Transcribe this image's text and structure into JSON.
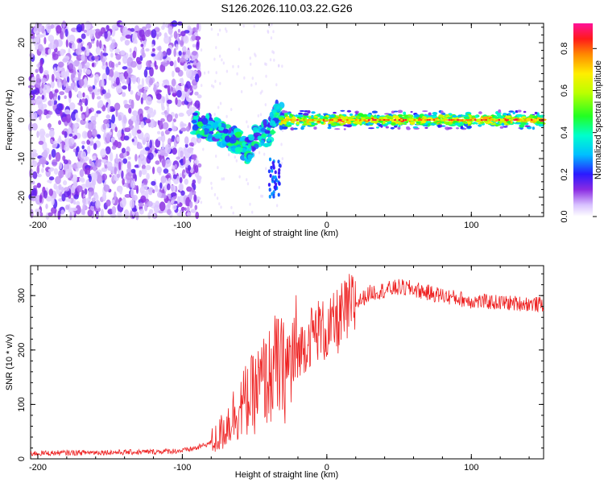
{
  "title": "S126.2026.110.03.22.G26",
  "colors": {
    "snr_line": "#ee2222",
    "background": "#ffffff",
    "speckle": "#7711ee"
  },
  "colorbar": {
    "label": "Normalized spectral amplitude",
    "ticks": [
      "0.0",
      "0.2",
      "0.4",
      "0.6",
      "0.8"
    ],
    "tick_values": [
      0.0,
      0.2,
      0.4,
      0.6,
      0.8
    ],
    "range": [
      0,
      0.92
    ]
  },
  "chart_data": [
    {
      "type": "heatmap",
      "title": "S126.2026.110.03.22.G26",
      "xlabel": "Height of straight line (km)",
      "ylabel": "Frequency (Hz)",
      "xlim": [
        -205,
        150
      ],
      "ylim": [
        -25,
        25
      ],
      "x_ticks": [
        -200,
        -100,
        0,
        100
      ],
      "x_tick_labels": [
        "-200",
        "-100",
        "0",
        "100"
      ],
      "y_ticks": [
        -20,
        -10,
        0,
        10,
        20
      ],
      "y_tick_labels": [
        "-20",
        "-10",
        "0",
        "10",
        "20"
      ],
      "description_regions": [
        {
          "x_range": [
            -205,
            -90
          ],
          "freq_range": [
            -25,
            25
          ],
          "amplitude": "low (noise speckle)"
        },
        {
          "x_range": [
            -90,
            -40
          ],
          "freq_range": [
            -12,
            2
          ],
          "amplitude": "medium, descending trace"
        },
        {
          "x_range": [
            -40,
            -30
          ],
          "freq_range": [
            -20,
            6
          ],
          "amplitude": "medium, split trace"
        },
        {
          "x_range": [
            -30,
            150
          ],
          "freq_range": [
            -1,
            1
          ],
          "amplitude": "high, stable carrier at 0 Hz"
        }
      ],
      "trace_center_hz": [
        {
          "x": -90,
          "f": -1
        },
        {
          "x": -80,
          "f": -2
        },
        {
          "x": -70,
          "f": -4
        },
        {
          "x": -60,
          "f": -6
        },
        {
          "x": -55,
          "f": -8
        },
        {
          "x": -50,
          "f": -5
        },
        {
          "x": -45,
          "f": -3
        },
        {
          "x": -40,
          "f": -4
        },
        {
          "x": -35,
          "f": 3
        },
        {
          "x": -30,
          "f": 0
        },
        {
          "x": -20,
          "f": 0
        },
        {
          "x": 0,
          "f": 0
        },
        {
          "x": 50,
          "f": 0
        },
        {
          "x": 100,
          "f": 0
        },
        {
          "x": 150,
          "f": 0
        }
      ]
    },
    {
      "type": "line",
      "xlabel": "Height of straight line (km)",
      "ylabel": "SNR (10 * v/v)",
      "xlim": [
        -205,
        150
      ],
      "ylim": [
        0,
        355
      ],
      "x_ticks": [
        -200,
        -100,
        0,
        100
      ],
      "x_tick_labels": [
        "-200",
        "-100",
        "0",
        "100"
      ],
      "y_ticks": [
        0,
        100,
        200,
        300
      ],
      "y_tick_labels": [
        "0",
        "100",
        "200",
        "300"
      ],
      "series": [
        {
          "name": "SNR",
          "x": [
            -205,
            -180,
            -160,
            -140,
            -120,
            -100,
            -90,
            -80,
            -75,
            -70,
            -65,
            -60,
            -55,
            -50,
            -45,
            -40,
            -35,
            -30,
            -25,
            -20,
            -15,
            -10,
            -5,
            0,
            5,
            10,
            20,
            30,
            40,
            50,
            60,
            70,
            80,
            90,
            100,
            120,
            140,
            150
          ],
          "y": [
            10,
            11,
            12,
            12,
            13,
            15,
            20,
            30,
            40,
            60,
            80,
            95,
            110,
            120,
            140,
            150,
            170,
            160,
            175,
            200,
            210,
            230,
            240,
            230,
            245,
            260,
            285,
            305,
            310,
            315,
            312,
            305,
            300,
            295,
            290,
            287,
            285,
            283
          ]
        }
      ]
    }
  ]
}
